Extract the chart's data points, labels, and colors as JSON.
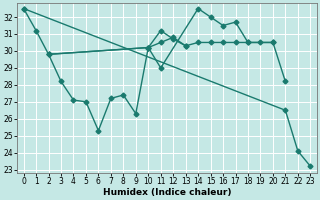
{
  "xlabel": "Humidex (Indice chaleur)",
  "line_color": "#1a7a6e",
  "marker": "D",
  "marker_size": 2.5,
  "linewidth": 1.0,
  "bg_color": "#c5e8e5",
  "grid_color": "#ffffff",
  "ylim": [
    22.8,
    32.8
  ],
  "xlim": [
    -0.5,
    23.5
  ],
  "yticks": [
    23,
    24,
    25,
    26,
    27,
    28,
    29,
    30,
    31,
    32
  ],
  "xticks": [
    0,
    1,
    2,
    3,
    4,
    5,
    6,
    7,
    8,
    9,
    10,
    11,
    12,
    13,
    14,
    15,
    16,
    17,
    18,
    19,
    20,
    21,
    22,
    23
  ],
  "lines": [
    {
      "x": [
        0,
        1,
        2,
        10,
        11,
        12,
        13,
        14,
        15,
        16,
        17,
        18,
        19,
        20
      ],
      "y": [
        32.5,
        31.2,
        29.8,
        30.2,
        30.5,
        30.8,
        30.3,
        30.5,
        30.5,
        30.5,
        30.5,
        30.5,
        30.5,
        30.5
      ]
    },
    {
      "x": [
        2,
        3,
        4,
        5,
        6,
        7,
        8,
        9,
        10,
        11,
        12,
        13
      ],
      "y": [
        29.8,
        28.2,
        27.1,
        27.0,
        25.3,
        27.2,
        27.4,
        26.3,
        30.2,
        31.2,
        30.7,
        30.3
      ]
    },
    {
      "x": [
        2,
        10,
        11,
        14,
        15,
        16,
        17,
        18,
        20,
        21
      ],
      "y": [
        29.8,
        30.2,
        29.0,
        32.5,
        32.0,
        31.5,
        31.7,
        30.5,
        30.5,
        28.2
      ]
    },
    {
      "x": [
        0,
        21,
        22,
        23
      ],
      "y": [
        32.5,
        26.5,
        24.1,
        23.2
      ]
    }
  ]
}
